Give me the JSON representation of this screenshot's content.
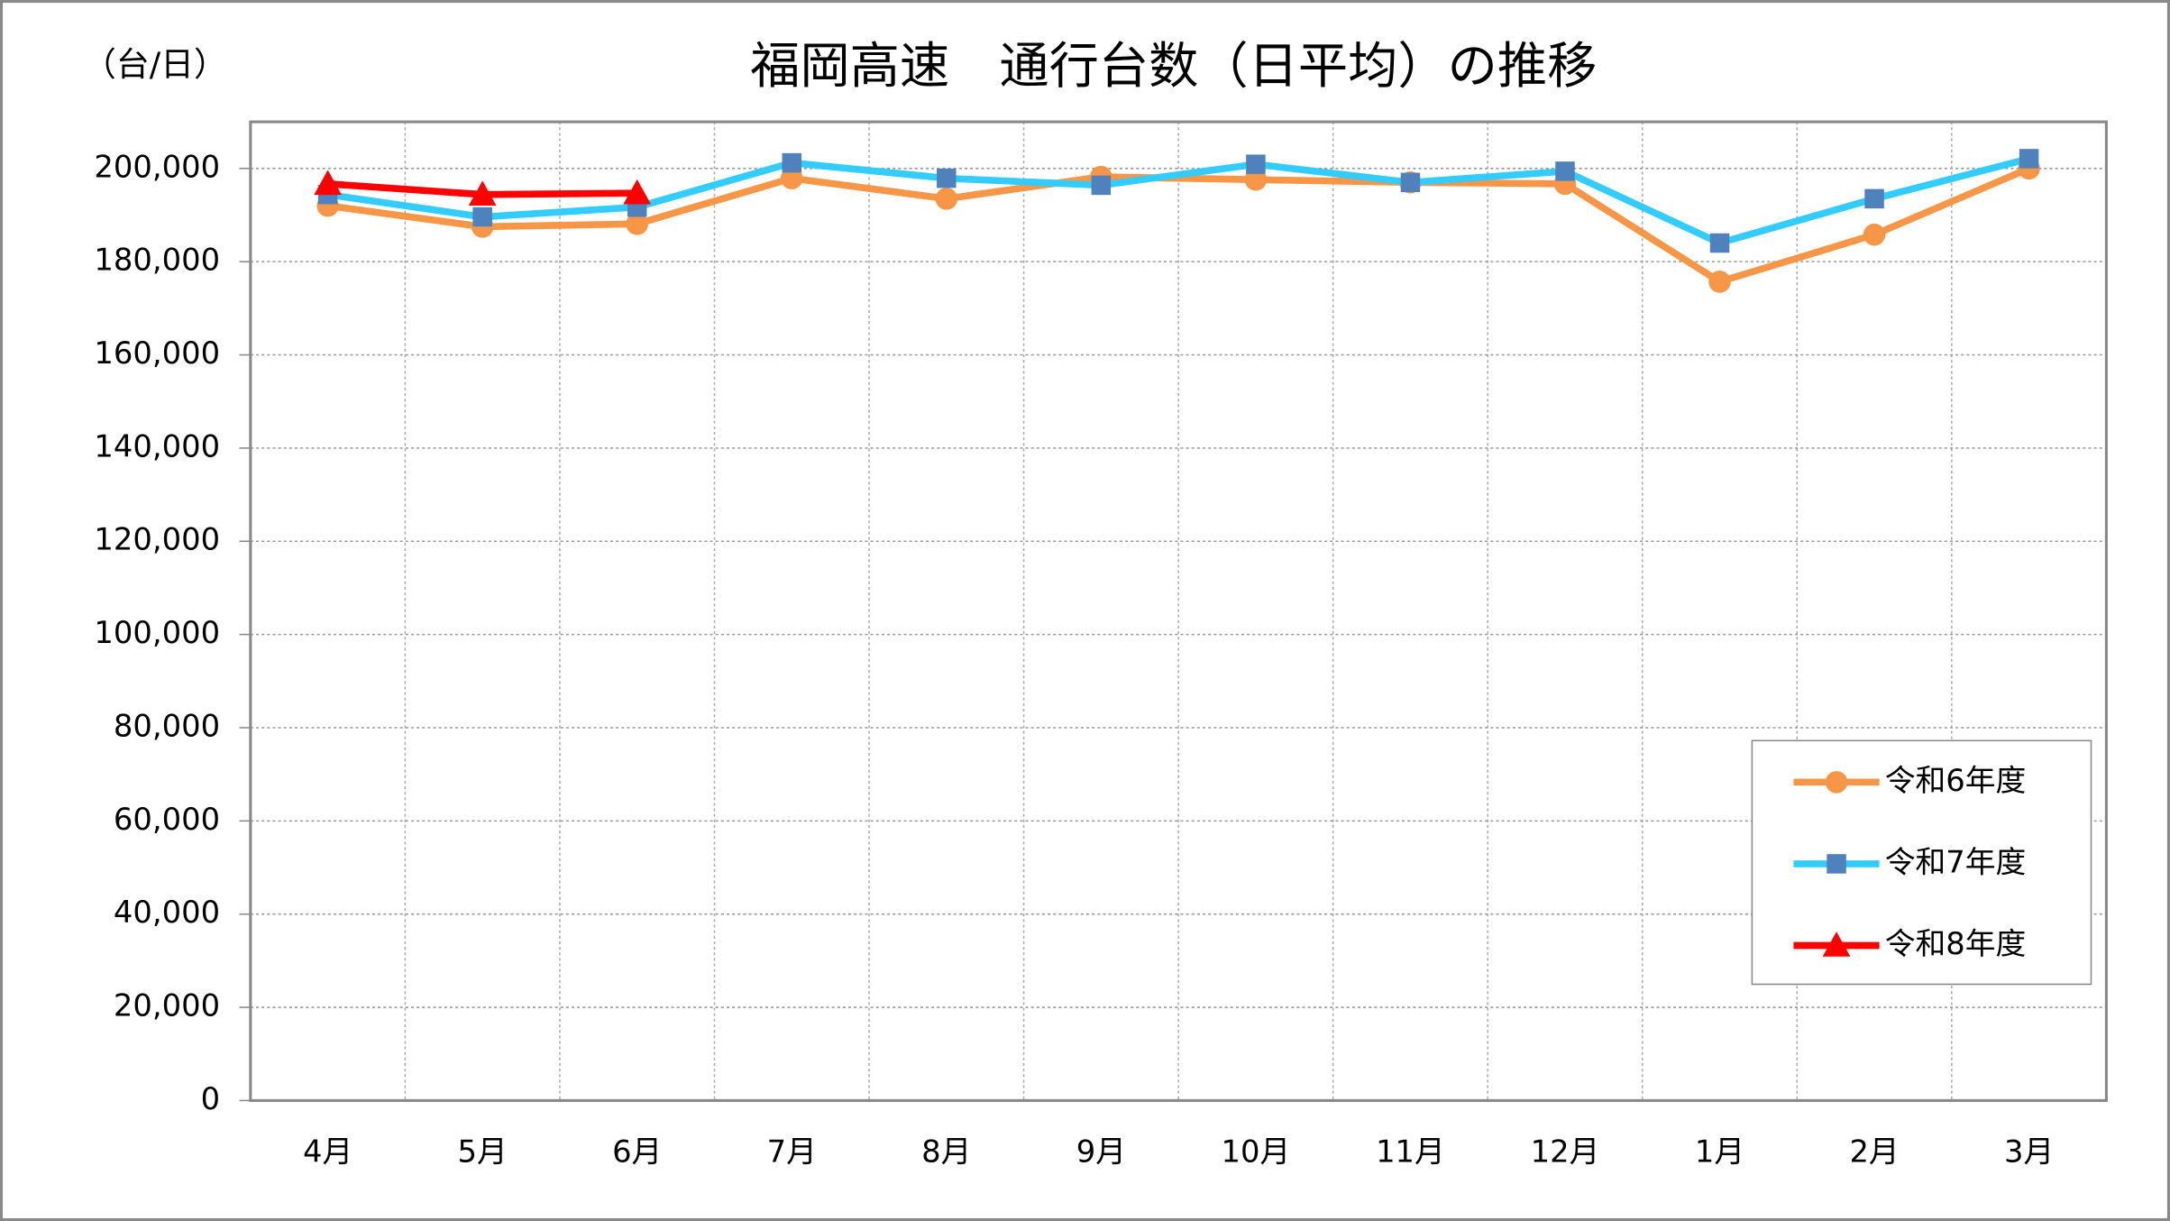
{
  "chart_data": {
    "type": "line",
    "title": "福岡高速　通行台数（日平均）の推移",
    "y_unit_label": "（台/日）",
    "categories": [
      "4月",
      "5月",
      "6月",
      "7月",
      "8月",
      "9月",
      "10月",
      "11月",
      "12月",
      "1月",
      "2月",
      "3月"
    ],
    "series": [
      {
        "name": "令和6年度",
        "color": "#F79646",
        "marker": "circle",
        "marker_color": "#F79646",
        "values": [
          192000,
          187500,
          188100,
          197900,
          193500,
          198200,
          197600,
          197000,
          196700,
          175700,
          185800,
          200000
        ]
      },
      {
        "name": "令和7年度",
        "color": "#33CCFF",
        "marker": "square",
        "marker_color": "#4F81BD",
        "values": [
          194400,
          189600,
          191700,
          201200,
          197900,
          196400,
          200900,
          197000,
          199400,
          184000,
          193500,
          202100
        ]
      },
      {
        "name": "令和8年度",
        "color": "#FF0000",
        "marker": "triangle",
        "marker_color": "#FF0000",
        "values": [
          196700,
          194400,
          194700,
          null,
          null,
          null,
          null,
          null,
          null,
          null,
          null,
          null
        ]
      }
    ],
    "ylim": [
      0,
      210000
    ],
    "yticks": [
      0,
      {
        "value": 20000,
        "label": "20,000"
      },
      {
        "value": 40000,
        "label": "40,000"
      },
      {
        "value": 60000,
        "label": "60,000"
      },
      {
        "value": 80000,
        "label": "80,000"
      },
      {
        "value": 100000,
        "label": "100,000"
      },
      {
        "value": 120000,
        "label": "120,000"
      },
      {
        "value": 140000,
        "label": "140,000"
      },
      {
        "value": 160000,
        "label": "160,000"
      },
      {
        "value": 180000,
        "label": "180,000"
      },
      {
        "value": 200000,
        "label": "200,000"
      }
    ],
    "grid": true,
    "legend": "lower right"
  }
}
